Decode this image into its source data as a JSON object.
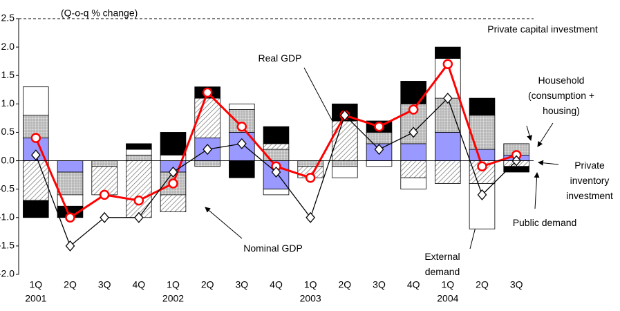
{
  "chart_data": {
    "type": "bar",
    "y_label": "(Q-o-q % change)",
    "categories": [
      "1Q",
      "2Q",
      "3Q",
      "4Q",
      "1Q",
      "2Q",
      "3Q",
      "4Q",
      "1Q",
      "2Q",
      "3Q",
      "4Q",
      "1Q",
      "2Q",
      "3Q"
    ],
    "years": [
      "2001",
      null,
      null,
      null,
      "2002",
      null,
      null,
      null,
      "2003",
      null,
      null,
      null,
      "2004",
      null,
      null
    ],
    "ylim": [
      -2.0,
      2.5
    ],
    "yticks": [
      {
        "value": -2.0,
        "label": "-2.0"
      },
      -1.5,
      {
        "value": -1.0,
        "label": "-1.0"
      },
      -0.5,
      {
        "value": 0.0,
        "label": "0.0"
      },
      0.5,
      {
        "value": 1.0,
        "label": "1.0"
      },
      1.5,
      {
        "value": 2.0,
        "label": "2.0"
      },
      2.5
    ],
    "grid": false,
    "series": [
      {
        "name": "Household\n(consumption +\nhousing)",
        "type": "bar",
        "color": "#9999ff",
        "pattern": null,
        "values": [
          0.4,
          -0.2,
          0,
          0,
          -0.2,
          0.4,
          0.5,
          -0.5,
          0,
          0,
          0.3,
          0.3,
          0.5,
          0.2,
          0.1
        ]
      },
      {
        "name": "Private capital investment",
        "type": "bar",
        "color": "#c0c0c0",
        "pattern": "dots",
        "values": [
          0.4,
          -0.4,
          -0.1,
          0.1,
          -0.4,
          -0.1,
          0.4,
          0.2,
          -0.1,
          -0.1,
          0.2,
          0.7,
          0.6,
          0.6,
          0.2
        ]
      },
      {
        "name": "Private\ninventory\ninvestment",
        "type": "bar",
        "color": "#808080",
        "pattern": "diagonal",
        "values": [
          -0.7,
          0,
          -0.5,
          -1.0,
          -0.3,
          0.7,
          0,
          0.1,
          -0.2,
          0.7,
          0,
          -0.3,
          -0.4,
          -0.4,
          -0.1
        ]
      },
      {
        "name": "Public demand",
        "type": "bar",
        "color": "#ffffff",
        "pattern": null,
        "values": [
          0.5,
          -0.2,
          0,
          0.1,
          0.1,
          0,
          0.1,
          -0.1,
          0,
          -0.2,
          -0.1,
          -0.2,
          0.7,
          -0.8,
          0
        ]
      },
      {
        "name": "External\ndemand",
        "type": "bar",
        "color": "#000000",
        "pattern": null,
        "values": [
          -0.3,
          -0.2,
          0,
          0.1,
          0.4,
          0.2,
          -0.3,
          0.3,
          0,
          0.3,
          0.2,
          0.4,
          0.2,
          0.3,
          -0.1
        ]
      },
      {
        "name": "Real GDP",
        "type": "line",
        "color": "#ff0000",
        "marker": "circle",
        "values": [
          0.4,
          -1.0,
          -0.6,
          -0.7,
          -0.4,
          1.2,
          0.6,
          -0.1,
          -0.3,
          0.8,
          0.6,
          0.9,
          1.7,
          -0.1,
          0.1
        ]
      },
      {
        "name": "Nominal GDP",
        "type": "line",
        "color": "#000000",
        "marker": "diamond",
        "values": [
          0.1,
          -1.5,
          -1.0,
          -1.0,
          -0.2,
          0.2,
          0.3,
          -0.2,
          -1.0,
          0.8,
          0.2,
          0.5,
          1.1,
          -0.6,
          0.0
        ]
      }
    ]
  }
}
